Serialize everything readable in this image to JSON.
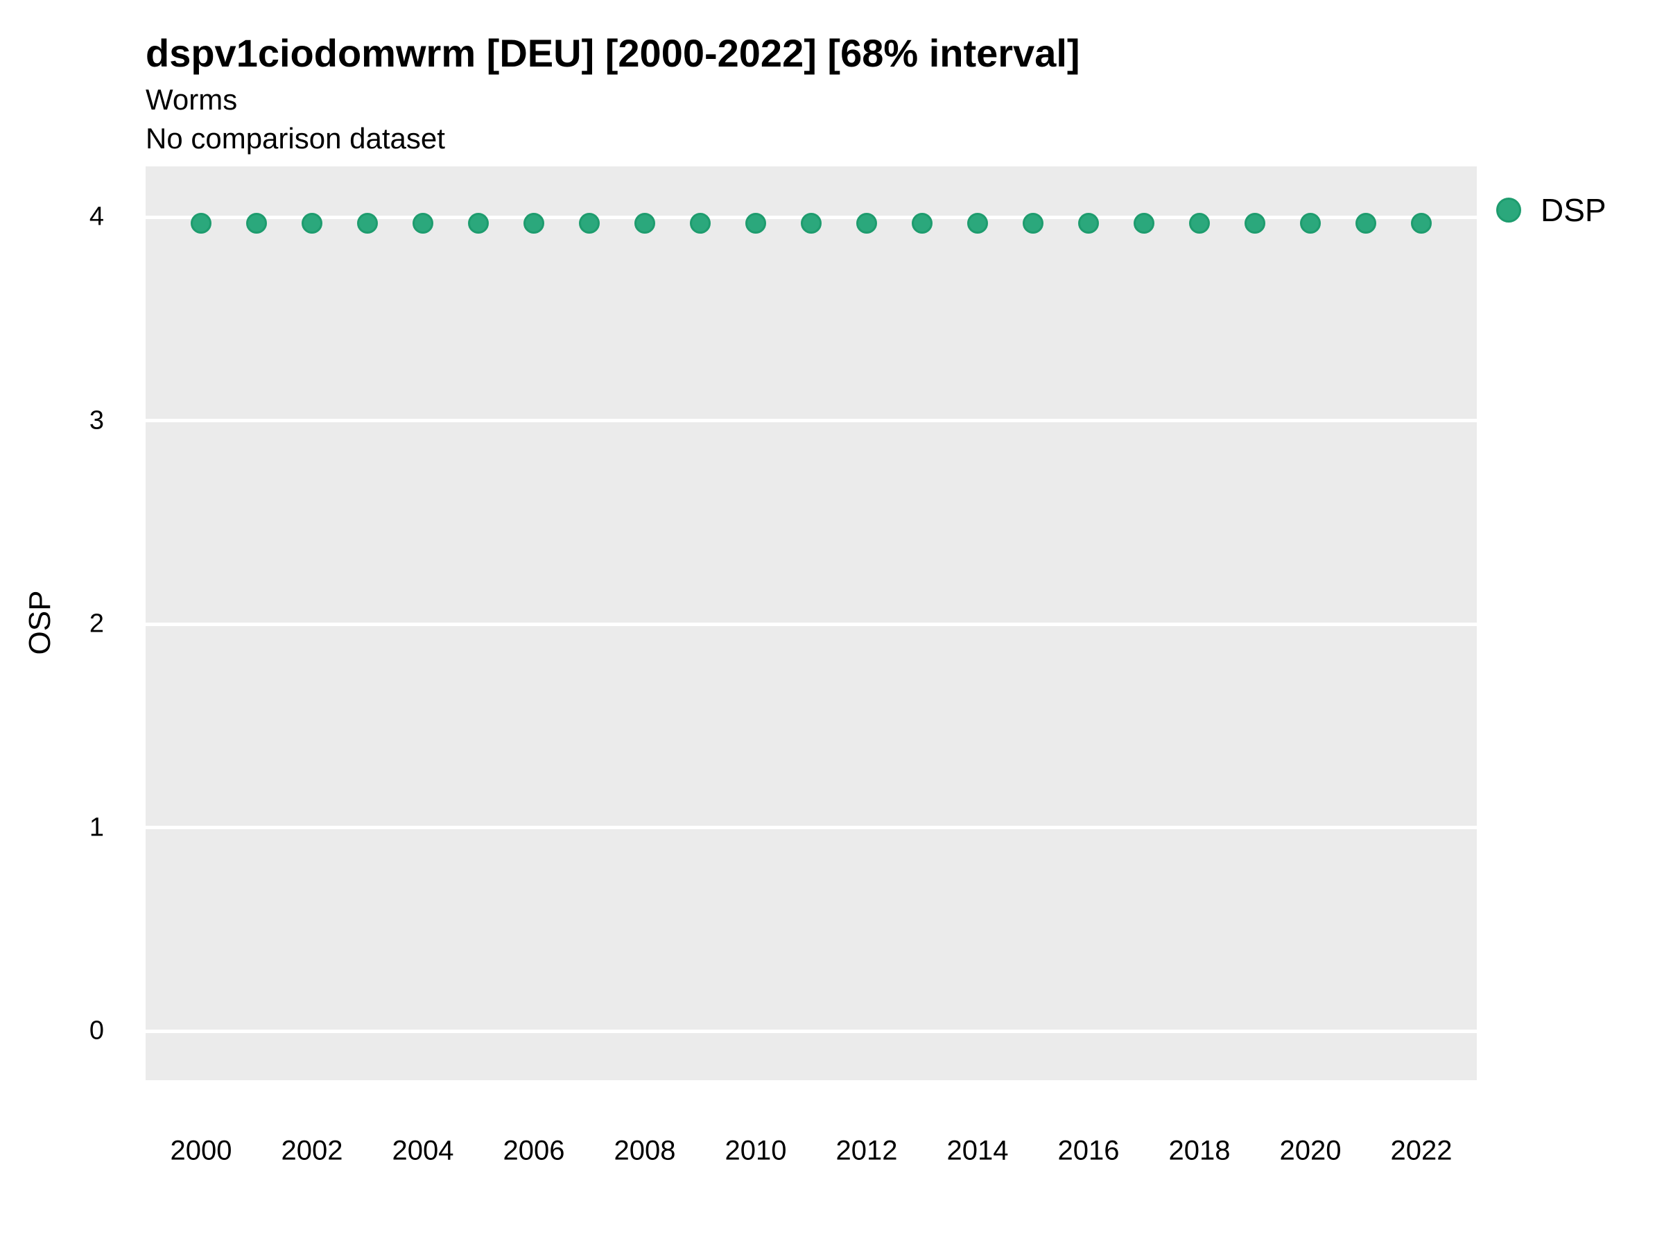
{
  "header": {
    "title": "dspv1ciodomwrm [DEU] [2000-2022] [68% interval]",
    "subtitle_line1": "Worms",
    "subtitle_line2": "No comparison dataset"
  },
  "legend": {
    "items": [
      {
        "label": "DSP",
        "color": "#2BA87C"
      }
    ]
  },
  "colors": {
    "point_fill": "#2BA87C",
    "point_border": "#1E9C6E",
    "panel_bg": "#EBEBEB",
    "gridline": "#FFFFFF",
    "text": "#000000"
  },
  "chart_data": {
    "type": "scatter",
    "title": "dspv1ciodomwrm [DEU] [2000-2022] [68% interval]",
    "subtitle": "Worms",
    "caption": "No comparison dataset",
    "xlabel": "",
    "ylabel": "OSP",
    "x": [
      2000,
      2001,
      2002,
      2003,
      2004,
      2005,
      2006,
      2007,
      2008,
      2009,
      2010,
      2011,
      2012,
      2013,
      2014,
      2015,
      2016,
      2017,
      2018,
      2019,
      2020,
      2021,
      2022
    ],
    "series": [
      {
        "name": "DSP",
        "values": [
          3.97,
          3.97,
          3.97,
          3.97,
          3.97,
          3.97,
          3.97,
          3.97,
          3.97,
          3.97,
          3.97,
          3.97,
          3.97,
          3.97,
          3.97,
          3.97,
          3.97,
          3.97,
          3.97,
          3.97,
          3.97,
          3.97,
          3.97
        ]
      }
    ],
    "ylim": [
      -0.25,
      4.25
    ],
    "yticks": [
      0,
      1,
      2,
      3,
      4
    ],
    "xticks": [
      2000,
      2002,
      2004,
      2006,
      2008,
      2010,
      2012,
      2014,
      2016,
      2018,
      2020,
      2022
    ],
    "grid": "horizontal-major-only",
    "legend_position": "right-top"
  }
}
